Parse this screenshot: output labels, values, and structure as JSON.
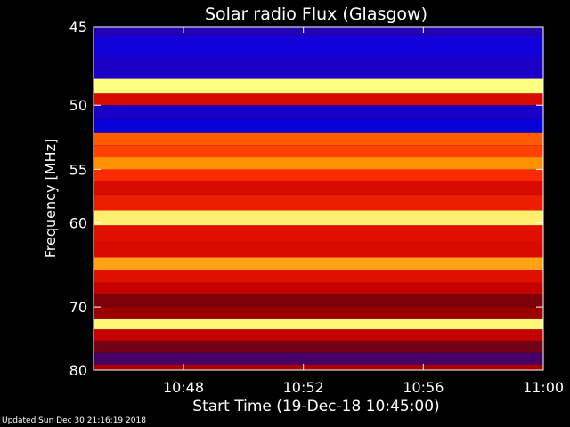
{
  "chart_data": {
    "type": "heatmap",
    "title": "Solar radio Flux (Glasgow)",
    "xlabel": "Start Time (19-Dec-18 10:45:00)",
    "ylabel": "Frequency [MHz]",
    "x_ticks": [
      "10:48",
      "10:52",
      "10:56",
      "11:00"
    ],
    "x_tick_minutes": [
      48,
      52,
      56,
      60
    ],
    "x_range_minutes": [
      45,
      60
    ],
    "y_ticks": [
      45,
      50,
      55,
      60,
      70,
      80
    ],
    "y_range_mhz": [
      45,
      80
    ],
    "y_scale": "reciprocal",
    "grid": false,
    "legend": "none",
    "colormap": [
      "#1a0080",
      "#0000ff",
      "#400070",
      "#800000",
      "#d00000",
      "#ff3000",
      "#ff9000",
      "#ffff80"
    ],
    "bands": [
      {
        "freq_mhz": 45.0,
        "intensity": 0.22
      },
      {
        "freq_mhz": 46.0,
        "intensity": 0.18
      },
      {
        "freq_mhz": 47.5,
        "intensity": 0.2
      },
      {
        "freq_mhz": 48.9,
        "intensity": 1.0
      },
      {
        "freq_mhz": 49.5,
        "intensity": 0.6
      },
      {
        "freq_mhz": 50.5,
        "intensity": 0.2
      },
      {
        "freq_mhz": 51.5,
        "intensity": 0.1
      },
      {
        "freq_mhz": 52.5,
        "intensity": 0.78
      },
      {
        "freq_mhz": 53.5,
        "intensity": 0.74
      },
      {
        "freq_mhz": 54.5,
        "intensity": 0.86
      },
      {
        "freq_mhz": 55.5,
        "intensity": 0.7
      },
      {
        "freq_mhz": 56.5,
        "intensity": 0.6
      },
      {
        "freq_mhz": 58.0,
        "intensity": 0.66
      },
      {
        "freq_mhz": 59.5,
        "intensity": 0.98
      },
      {
        "freq_mhz": 61.0,
        "intensity": 0.62
      },
      {
        "freq_mhz": 63.0,
        "intensity": 0.6
      },
      {
        "freq_mhz": 64.5,
        "intensity": 0.88
      },
      {
        "freq_mhz": 66.0,
        "intensity": 0.62
      },
      {
        "freq_mhz": 67.5,
        "intensity": 0.55
      },
      {
        "freq_mhz": 69.0,
        "intensity": 0.42
      },
      {
        "freq_mhz": 71.0,
        "intensity": 0.48
      },
      {
        "freq_mhz": 72.5,
        "intensity": 0.99
      },
      {
        "freq_mhz": 74.0,
        "intensity": 0.55
      },
      {
        "freq_mhz": 76.0,
        "intensity": 0.4
      },
      {
        "freq_mhz": 78.0,
        "intensity": 0.3
      },
      {
        "freq_mhz": 80.0,
        "intensity": 0.5
      }
    ]
  },
  "footer": {
    "updated": "Updated Sun Dec 30 21:16:19 2018"
  }
}
